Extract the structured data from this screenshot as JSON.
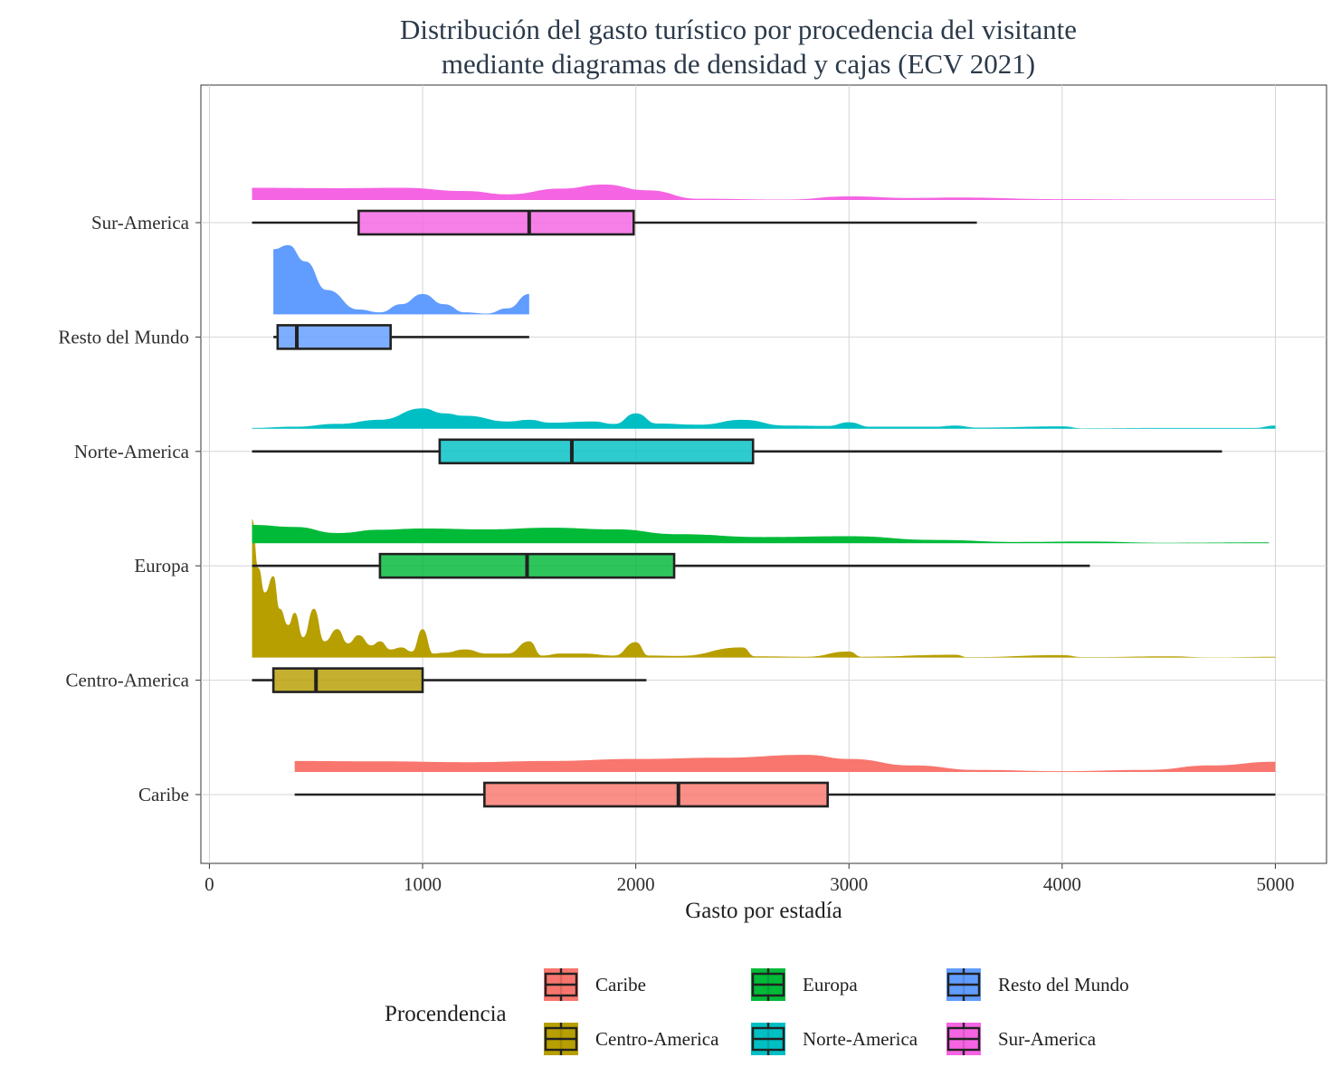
{
  "chart_data": {
    "type": "density-boxplot",
    "title_lines": [
      "Distribución del gasto turístico por procedencia del visitante",
      "mediante diagramas de densidad y cajas (ECV 2021)"
    ],
    "xlabel": "Gasto por estadía",
    "ylabel": "",
    "xlim": [
      -40,
      5240
    ],
    "x_ticks": [
      0,
      1000,
      2000,
      3000,
      4000,
      5000
    ],
    "grid": true,
    "legend": {
      "title": "Procendencia",
      "placement": "bottom",
      "entries": [
        "Caribe",
        "Centro-America",
        "Europa",
        "Norte-America",
        "Resto del Mundo",
        "Sur-America"
      ]
    },
    "categories": [
      "Caribe",
      "Centro-America",
      "Europa",
      "Norte-America",
      "Resto del Mundo",
      "Sur-America"
    ],
    "series": [
      {
        "name": "Caribe",
        "color": "#F8766D",
        "box": {
          "whisker_low": 400,
          "q1": 1290,
          "median": 2200,
          "q3": 2900,
          "whisker_high": 5000
        },
        "density": [
          [
            400,
            0.27
          ],
          [
            800,
            0.26
          ],
          [
            1200,
            0.24
          ],
          [
            1600,
            0.27
          ],
          [
            2000,
            0.32
          ],
          [
            2400,
            0.35
          ],
          [
            2800,
            0.42
          ],
          [
            3000,
            0.32
          ],
          [
            3300,
            0.16
          ],
          [
            3600,
            0.05
          ],
          [
            4000,
            0.02
          ],
          [
            4400,
            0.05
          ],
          [
            4700,
            0.16
          ],
          [
            5000,
            0.25
          ]
        ]
      },
      {
        "name": "Centro-America",
        "color": "#B79F00",
        "box": {
          "whisker_low": 200,
          "q1": 300,
          "median": 500,
          "q3": 1000,
          "whisker_high": 2050
        },
        "density": [
          [
            200,
            3.4
          ],
          [
            230,
            2.2
          ],
          [
            260,
            1.6
          ],
          [
            300,
            2.0
          ],
          [
            330,
            1.2
          ],
          [
            370,
            0.8
          ],
          [
            400,
            1.1
          ],
          [
            440,
            0.5
          ],
          [
            490,
            1.2
          ],
          [
            540,
            0.4
          ],
          [
            600,
            0.7
          ],
          [
            650,
            0.35
          ],
          [
            700,
            0.55
          ],
          [
            760,
            0.3
          ],
          [
            800,
            0.4
          ],
          [
            850,
            0.2
          ],
          [
            900,
            0.25
          ],
          [
            950,
            0.15
          ],
          [
            1000,
            0.7
          ],
          [
            1050,
            0.1
          ],
          [
            1100,
            0.12
          ],
          [
            1200,
            0.2
          ],
          [
            1300,
            0.1
          ],
          [
            1400,
            0.1
          ],
          [
            1500,
            0.4
          ],
          [
            1560,
            0.05
          ],
          [
            1650,
            0.1
          ],
          [
            1750,
            0.1
          ],
          [
            1900,
            0.05
          ],
          [
            2000,
            0.38
          ],
          [
            2060,
            0.05
          ],
          [
            2200,
            0.04
          ],
          [
            2500,
            0.25
          ],
          [
            2560,
            0.03
          ],
          [
            2800,
            0.02
          ],
          [
            3000,
            0.15
          ],
          [
            3060,
            0.02
          ],
          [
            3500,
            0.07
          ],
          [
            3560,
            0.01
          ],
          [
            4000,
            0.06
          ],
          [
            4100,
            0.01
          ],
          [
            4500,
            0.03
          ],
          [
            4700,
            0.005
          ],
          [
            5000,
            0.02
          ]
        ]
      },
      {
        "name": "Europa",
        "color": "#00BA38",
        "box": {
          "whisker_low": 200,
          "q1": 800,
          "median": 1490,
          "q3": 2180,
          "whisker_high": 4130
        },
        "density": [
          [
            200,
            0.45
          ],
          [
            400,
            0.4
          ],
          [
            600,
            0.25
          ],
          [
            800,
            0.33
          ],
          [
            1000,
            0.36
          ],
          [
            1300,
            0.34
          ],
          [
            1600,
            0.38
          ],
          [
            1900,
            0.34
          ],
          [
            2200,
            0.22
          ],
          [
            2600,
            0.15
          ],
          [
            3000,
            0.17
          ],
          [
            3400,
            0.08
          ],
          [
            3800,
            0.03
          ],
          [
            4100,
            0.04
          ],
          [
            4500,
            0.01
          ],
          [
            4970,
            0.02
          ]
        ]
      },
      {
        "name": "Norte-America",
        "color": "#00BFC4",
        "box": {
          "whisker_low": 200,
          "q1": 1080,
          "median": 1700,
          "q3": 2550,
          "whisker_high": 4750
        },
        "density": [
          [
            200,
            0.02
          ],
          [
            400,
            0.05
          ],
          [
            600,
            0.12
          ],
          [
            800,
            0.22
          ],
          [
            1000,
            0.5
          ],
          [
            1100,
            0.38
          ],
          [
            1200,
            0.32
          ],
          [
            1400,
            0.18
          ],
          [
            1500,
            0.22
          ],
          [
            1600,
            0.15
          ],
          [
            1800,
            0.18
          ],
          [
            1900,
            0.12
          ],
          [
            2000,
            0.38
          ],
          [
            2100,
            0.13
          ],
          [
            2300,
            0.1
          ],
          [
            2500,
            0.22
          ],
          [
            2700,
            0.08
          ],
          [
            2900,
            0.07
          ],
          [
            3000,
            0.16
          ],
          [
            3100,
            0.05
          ],
          [
            3400,
            0.05
          ],
          [
            3500,
            0.08
          ],
          [
            3600,
            0.03
          ],
          [
            4000,
            0.06
          ],
          [
            4100,
            0.01
          ],
          [
            4500,
            0.02
          ],
          [
            4900,
            0.02
          ],
          [
            5000,
            0.08
          ]
        ]
      },
      {
        "name": "Resto del Mundo",
        "color": "#619CFF",
        "box": {
          "whisker_low": 300,
          "q1": 320,
          "median": 410,
          "q3": 850,
          "whisker_high": 1500
        },
        "density": [
          [
            300,
            1.6
          ],
          [
            370,
            1.7
          ],
          [
            450,
            1.3
          ],
          [
            550,
            0.6
          ],
          [
            700,
            0.12
          ],
          [
            800,
            0.05
          ],
          [
            900,
            0.25
          ],
          [
            1000,
            0.5
          ],
          [
            1100,
            0.25
          ],
          [
            1200,
            0.05
          ],
          [
            1300,
            0.02
          ],
          [
            1400,
            0.15
          ],
          [
            1500,
            0.5
          ]
        ]
      },
      {
        "name": "Sur-America",
        "color": "#F564E3",
        "box": {
          "whisker_low": 200,
          "q1": 700,
          "median": 1500,
          "q3": 1990,
          "whisker_high": 3600
        },
        "density": [
          [
            200,
            0.3
          ],
          [
            600,
            0.29
          ],
          [
            900,
            0.3
          ],
          [
            1200,
            0.22
          ],
          [
            1400,
            0.14
          ],
          [
            1650,
            0.28
          ],
          [
            1850,
            0.38
          ],
          [
            2050,
            0.24
          ],
          [
            2300,
            0.03
          ],
          [
            2700,
            0.01
          ],
          [
            3000,
            0.09
          ],
          [
            3300,
            0.05
          ],
          [
            3500,
            0.06
          ],
          [
            4000,
            0.02
          ],
          [
            4500,
            0.01
          ],
          [
            5000,
            0.01
          ]
        ]
      }
    ]
  }
}
